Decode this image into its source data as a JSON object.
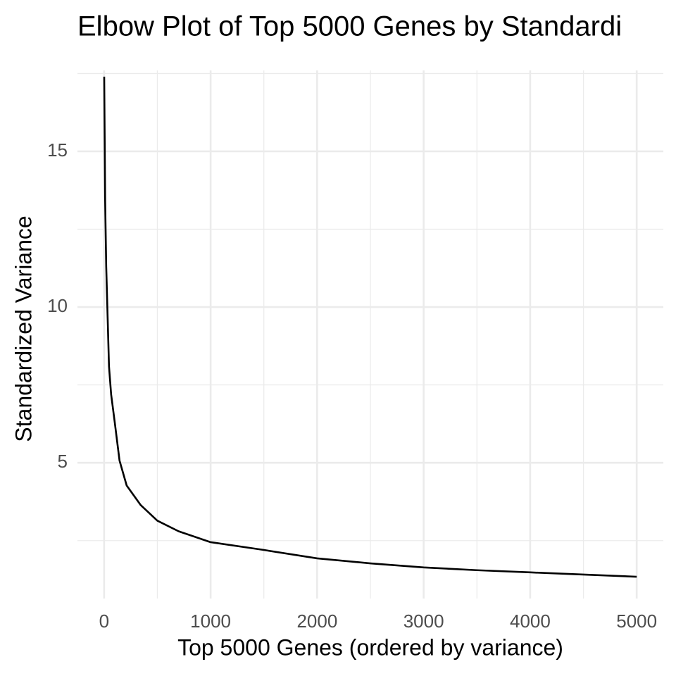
{
  "chart_data": {
    "type": "line",
    "title": "Elbow Plot of Top 5000 Genes by Standardi",
    "x_label": "Top 5000 Genes (ordered by variance)",
    "y_label": "Standardized Variance",
    "x": [
      1,
      10,
      20,
      46,
      66,
      100,
      145,
      212,
      344,
      500,
      700,
      1000,
      1500,
      2000,
      2500,
      3000,
      3500,
      4000,
      4500,
      5000
    ],
    "series": [
      {
        "name": "Standardized Variance",
        "color": "#000000",
        "values": [
          17.4,
          13.4,
          11.3,
          8.1,
          7.2,
          6.3,
          5.07,
          4.27,
          3.64,
          3.14,
          2.8,
          2.45,
          2.2,
          1.93,
          1.77,
          1.64,
          1.55,
          1.48,
          1.41,
          1.34
        ]
      }
    ],
    "xlim": [
      -250,
      5250
    ],
    "ylim": [
      0.64,
      17.6
    ],
    "xticks": [
      0,
      1000,
      2000,
      3000,
      4000,
      5000
    ],
    "yticks": [
      5,
      10,
      15
    ],
    "minor_xticks": [
      500,
      1500,
      2500,
      3500,
      4500
    ],
    "minor_yticks": [
      2.5,
      7.5,
      12.5,
      17.5
    ],
    "grid": true
  }
}
